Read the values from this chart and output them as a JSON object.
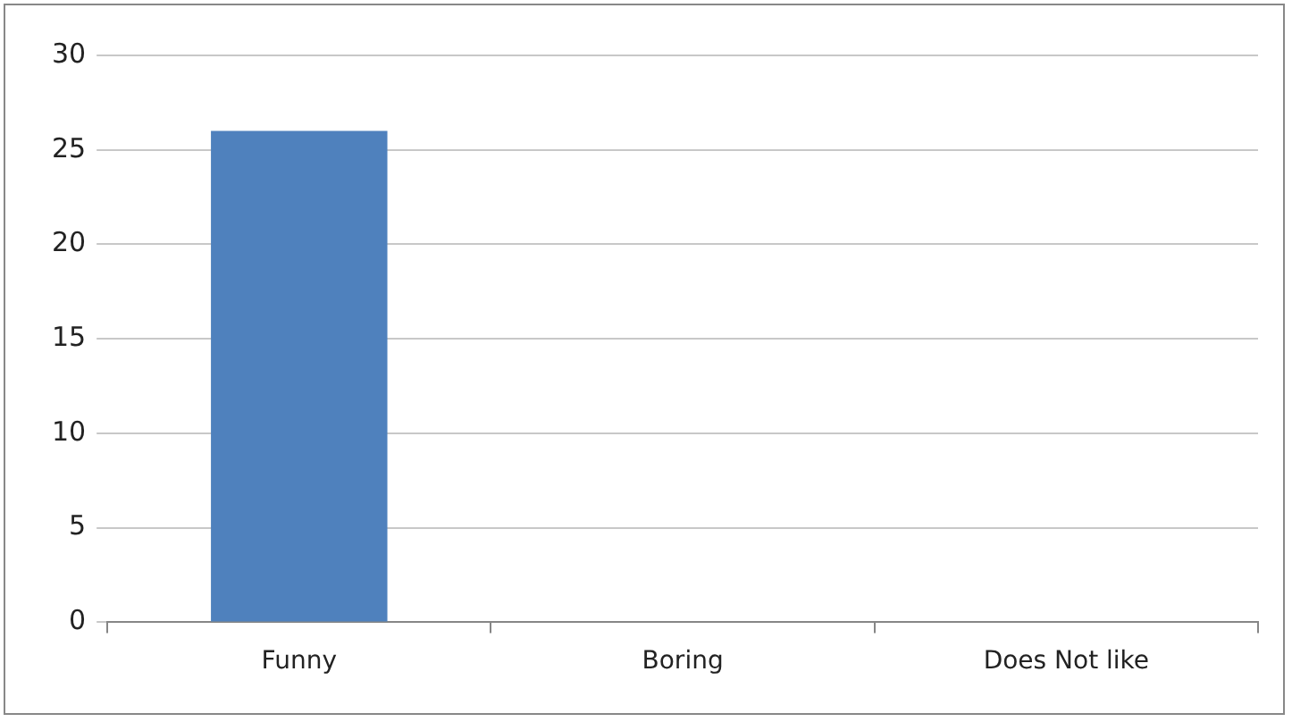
{
  "chart_data": {
    "type": "bar",
    "categories": [
      "Funny",
      "Boring",
      "Does Not like"
    ],
    "values": [
      26,
      0,
      0
    ],
    "color": "#4f81bd",
    "ylim": [
      0,
      30
    ],
    "yticks": [
      0,
      5,
      10,
      15,
      20,
      25,
      30
    ],
    "grid": "y",
    "legend": false
  }
}
